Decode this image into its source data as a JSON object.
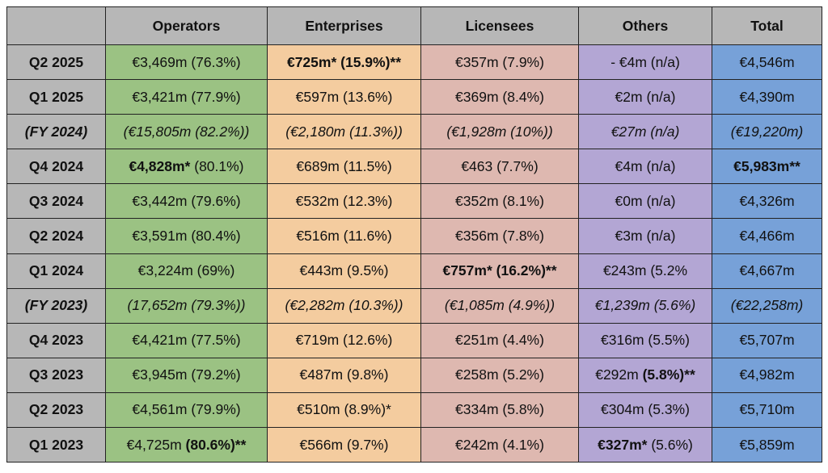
{
  "columns": [
    "",
    "Operators",
    "Enterprises",
    "Licensees",
    "Others",
    "Total"
  ],
  "colors": {
    "header": "#b7b7b7",
    "operators": "#9bc283",
    "enterprises": "#f4cc9f",
    "licensees": "#deb8b0",
    "others": "#b3a6d4",
    "total": "#77a1d8"
  },
  "rows": [
    {
      "label": "Q2 2025",
      "italic": false,
      "cells": [
        [
          {
            "t": "€3,469m (76.3%)"
          }
        ],
        [
          {
            "t": "€725m* (15.9%)**",
            "b": true
          }
        ],
        [
          {
            "t": "€357m (7.9%)"
          }
        ],
        [
          {
            "t": "- €4m (n/a)"
          }
        ],
        [
          {
            "t": "€4,546m"
          }
        ]
      ]
    },
    {
      "label": "Q1 2025",
      "italic": false,
      "cells": [
        [
          {
            "t": "€3,421m (77.9%)"
          }
        ],
        [
          {
            "t": "€597m (13.6%)"
          }
        ],
        [
          {
            "t": "€369m (8.4%)"
          }
        ],
        [
          {
            "t": "€2m (n/a)"
          }
        ],
        [
          {
            "t": "€4,390m"
          }
        ]
      ]
    },
    {
      "label": "(FY 2024)",
      "italic": true,
      "cells": [
        [
          {
            "t": "(€15,805m (82.2%))"
          }
        ],
        [
          {
            "t": "(€2,180m (11.3%))"
          }
        ],
        [
          {
            "t": "(€1,928m (10%))"
          }
        ],
        [
          {
            "t": "€27m (n/a)"
          }
        ],
        [
          {
            "t": "(€19,220m)"
          }
        ]
      ]
    },
    {
      "label": "Q4 2024",
      "italic": false,
      "cells": [
        [
          {
            "t": "€4,828m*",
            "b": true
          },
          {
            "t": " (80.1%)"
          }
        ],
        [
          {
            "t": "€689m (11.5%)"
          }
        ],
        [
          {
            "t": "€463 (7.7%)"
          }
        ],
        [
          {
            "t": "€4m (n/a)"
          }
        ],
        [
          {
            "t": "€5,983m**",
            "b": true
          }
        ]
      ]
    },
    {
      "label": "Q3 2024",
      "italic": false,
      "cells": [
        [
          {
            "t": "€3,442m (79.6%)"
          }
        ],
        [
          {
            "t": "€532m (12.3%)"
          }
        ],
        [
          {
            "t": "€352m (8.1%)"
          }
        ],
        [
          {
            "t": "€0m (n/a)"
          }
        ],
        [
          {
            "t": "€4,326m"
          }
        ]
      ]
    },
    {
      "label": "Q2 2024",
      "italic": false,
      "cells": [
        [
          {
            "t": "€3,591m (80.4%)"
          }
        ],
        [
          {
            "t": "€516m (11.6%)"
          }
        ],
        [
          {
            "t": "€356m (7.8%)"
          }
        ],
        [
          {
            "t": "€3m (n/a)"
          }
        ],
        [
          {
            "t": "€4,466m"
          }
        ]
      ]
    },
    {
      "label": "Q1 2024",
      "italic": false,
      "cells": [
        [
          {
            "t": "€3,224m (69%)"
          }
        ],
        [
          {
            "t": "€443m (9.5%)"
          }
        ],
        [
          {
            "t": "€757m* (16.2%)**",
            "b": true
          }
        ],
        [
          {
            "t": "€243m (5.2%"
          }
        ],
        [
          {
            "t": "€4,667m"
          }
        ]
      ]
    },
    {
      "label": "(FY 2023)",
      "italic": true,
      "cells": [
        [
          {
            "t": "(17,652m (79.3%))"
          }
        ],
        [
          {
            "t": "(€2,282m (10.3%))"
          }
        ],
        [
          {
            "t": "(€1,085m (4.9%))"
          }
        ],
        [
          {
            "t": "€1,239m (5.6%)"
          }
        ],
        [
          {
            "t": "(€22,258m)"
          }
        ]
      ]
    },
    {
      "label": "Q4 2023",
      "italic": false,
      "cells": [
        [
          {
            "t": "€4,421m (77.5%)"
          }
        ],
        [
          {
            "t": "€719m (12.6%)"
          }
        ],
        [
          {
            "t": "€251m (4.4%)"
          }
        ],
        [
          {
            "t": "€316m (5.5%)"
          }
        ],
        [
          {
            "t": "€5,707m"
          }
        ]
      ]
    },
    {
      "label": "Q3 2023",
      "italic": false,
      "cells": [
        [
          {
            "t": "€3,945m (79.2%)"
          }
        ],
        [
          {
            "t": "€487m (9.8%)"
          }
        ],
        [
          {
            "t": "€258m (5.2%)"
          }
        ],
        [
          {
            "t": "€292m "
          },
          {
            "t": "(5.8%)**",
            "b": true
          }
        ],
        [
          {
            "t": "€4,982m"
          }
        ]
      ]
    },
    {
      "label": "Q2 2023",
      "italic": false,
      "cells": [
        [
          {
            "t": "€4,561m (79.9%)"
          }
        ],
        [
          {
            "t": "€510m (8.9%)*"
          }
        ],
        [
          {
            "t": "€334m (5.8%)"
          }
        ],
        [
          {
            "t": "€304m (5.3%)"
          }
        ],
        [
          {
            "t": "€5,710m"
          }
        ]
      ]
    },
    {
      "label": "Q1 2023",
      "italic": false,
      "cells": [
        [
          {
            "t": "€4,725m "
          },
          {
            "t": "(80.6%)**",
            "b": true
          }
        ],
        [
          {
            "t": "€566m (9.7%)"
          }
        ],
        [
          {
            "t": "€242m (4.1%)"
          }
        ],
        [
          {
            "t": "€327m*",
            "b": true
          },
          {
            "t": " (5.6%)"
          }
        ],
        [
          {
            "t": "€5,859m"
          }
        ]
      ]
    }
  ]
}
